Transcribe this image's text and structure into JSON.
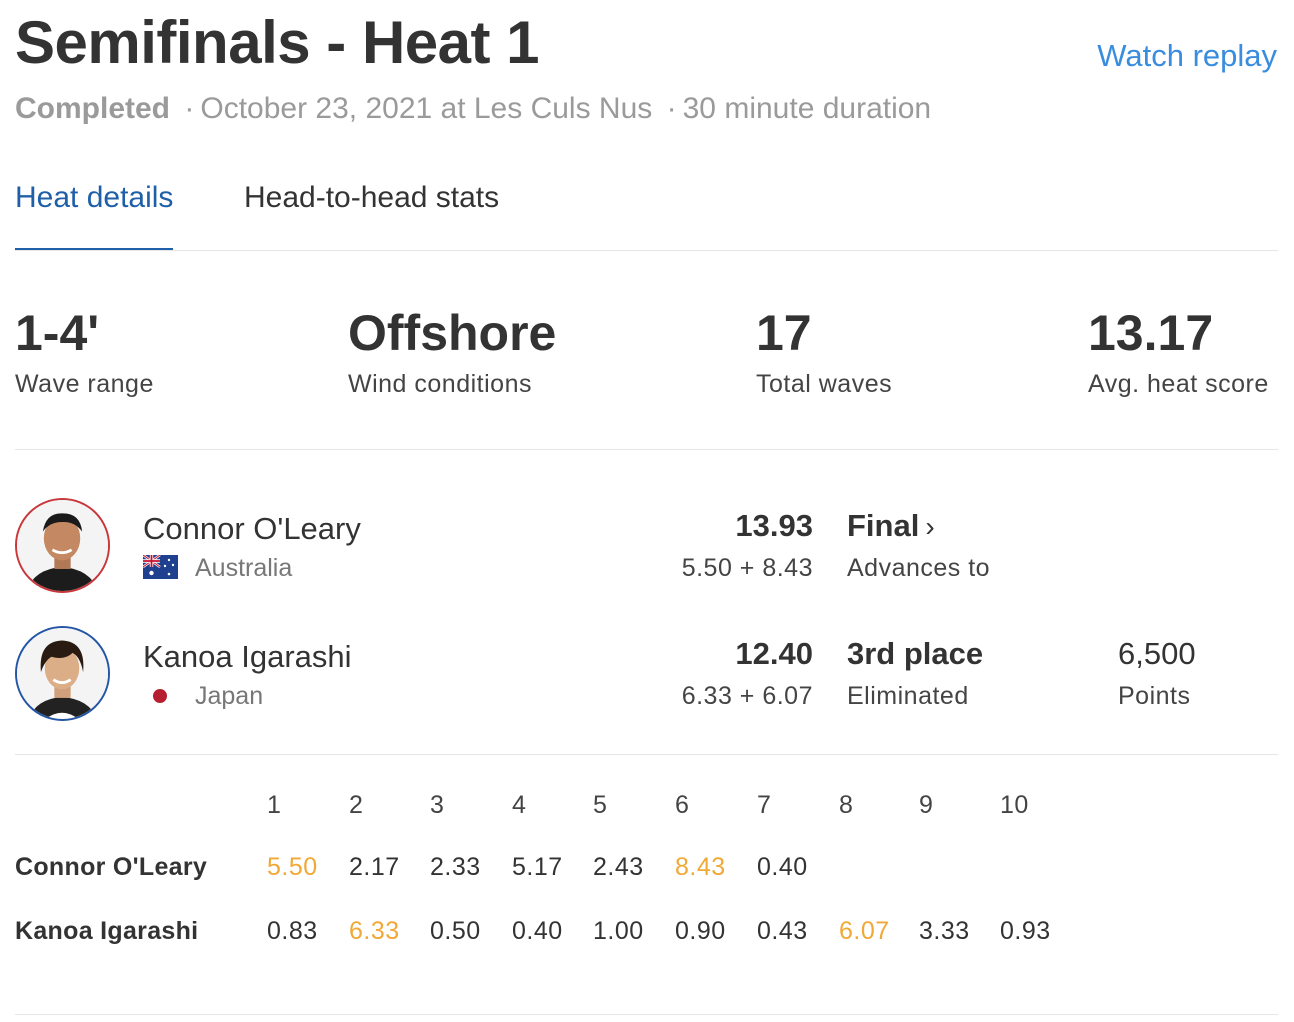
{
  "header": {
    "title": "Semifinals - Heat 1",
    "replay_label": "Watch replay",
    "status": "Completed",
    "separator": "·",
    "date_location": "October 23, 2021 at Les Culs Nus",
    "duration": "30 minute duration"
  },
  "tabs": [
    {
      "label": "Heat details",
      "active": true
    },
    {
      "label": "Head-to-head stats",
      "active": false
    }
  ],
  "stats": [
    {
      "value": "1-4'",
      "label": "Wave range"
    },
    {
      "value": "Offshore",
      "label": "Wind conditions"
    },
    {
      "value": "17",
      "label": "Total waves"
    },
    {
      "value": "13.17",
      "label": "Avg. heat score"
    }
  ],
  "athletes": [
    {
      "name": "Connor O'Leary",
      "country": "Australia",
      "flag_icon": "australia-flag-icon",
      "avatar_ring_color": "#c8373a",
      "total": "13.93",
      "waves": "5.50 + 8.43",
      "result": "Final",
      "result_sub": "Advances to",
      "points": "",
      "points_label": ""
    },
    {
      "name": "Kanoa Igarashi",
      "country": "Japan",
      "flag_icon": "japan-flag-dot-icon",
      "avatar_ring_color": "#2356a7",
      "total": "12.40",
      "waves": "6.33 + 6.07",
      "result": "3rd place",
      "result_sub": "Eliminated",
      "points": "6,500",
      "points_label": "Points"
    }
  ],
  "wave_scores": {
    "wave_numbers": [
      "1",
      "2",
      "3",
      "4",
      "5",
      "6",
      "7",
      "8",
      "9",
      "10"
    ],
    "highlight_color": "#f0a836",
    "rows": [
      {
        "name": "Connor O'Leary",
        "scores": [
          "5.50",
          "2.17",
          "2.33",
          "5.17",
          "2.43",
          "8.43",
          "0.40",
          "",
          "",
          ""
        ],
        "counting": [
          0,
          5
        ]
      },
      {
        "name": "Kanoa Igarashi",
        "scores": [
          "0.83",
          "6.33",
          "0.50",
          "0.40",
          "1.00",
          "0.90",
          "0.43",
          "6.07",
          "3.33",
          "0.93"
        ],
        "counting": [
          1,
          7
        ]
      }
    ]
  }
}
